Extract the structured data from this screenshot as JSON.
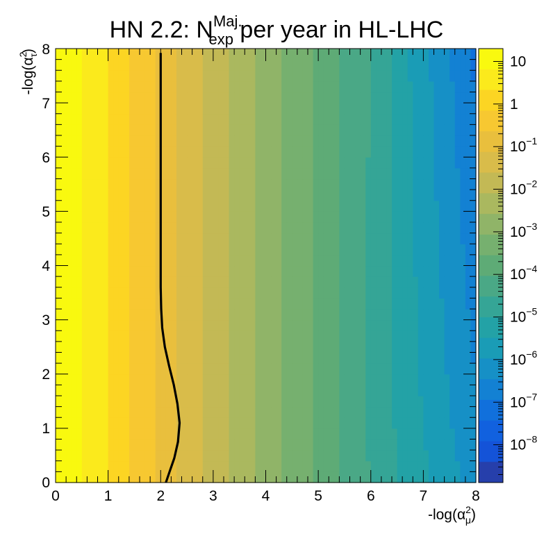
{
  "chart_data": {
    "type": "heatmap",
    "title": {
      "prefix": "HN 2.2: N",
      "sup": "Maj.",
      "sub": "exp",
      "suffix": " per year in HL-LHC"
    },
    "xlabel": {
      "prefix": "-log(α",
      "sup": "2",
      "sub": "μ",
      "suffix": ")"
    },
    "ylabel": {
      "prefix": "-log(α",
      "sup": "2",
      "sub": "τ",
      "suffix": ")"
    },
    "xlim": [
      0,
      8
    ],
    "ylim": [
      0,
      8
    ],
    "x_ticks": [
      "0",
      "1",
      "2",
      "3",
      "4",
      "5",
      "6",
      "7",
      "8"
    ],
    "y_ticks": [
      "0",
      "1",
      "2",
      "3",
      "4",
      "5",
      "6",
      "7",
      "8"
    ],
    "z_scale": "log",
    "zlim": [
      1.3e-09,
      20
    ],
    "colorbar_labels": [
      {
        "base": "10",
        "exp": "",
        "value": 10
      },
      {
        "base": "1",
        "exp": "",
        "value": 1
      },
      {
        "base": "10",
        "exp": "−1",
        "value": 0.1
      },
      {
        "base": "10",
        "exp": "−2",
        "value": 0.01
      },
      {
        "base": "10",
        "exp": "−3",
        "value": 0.001
      },
      {
        "base": "10",
        "exp": "−4",
        "value": 0.0001
      },
      {
        "base": "10",
        "exp": "−5",
        "value": 1e-05
      },
      {
        "base": "10",
        "exp": "−6",
        "value": 1e-06
      },
      {
        "base": "10",
        "exp": "−7",
        "value": 1e-07
      },
      {
        "base": "10",
        "exp": "−8",
        "value": 1e-08
      }
    ],
    "color_levels": [
      "#f9f90f",
      "#fbea1c",
      "#fcd523",
      "#f7c831",
      "#e9bf3d",
      "#d9bc4a",
      "#c3b955",
      "#aab85f",
      "#90b468",
      "#76b06f",
      "#5eab76",
      "#4aa886",
      "#35a596",
      "#23a2a6",
      "#1a9cb6",
      "#1690c6",
      "#1381d3",
      "#1170dc",
      "#1161df",
      "#1453d8",
      "#263fab"
    ],
    "contour_N1": [
      [
        2.1,
        0.0
      ],
      [
        2.17,
        0.2
      ],
      [
        2.26,
        0.45
      ],
      [
        2.33,
        0.75
      ],
      [
        2.36,
        1.1
      ],
      [
        2.32,
        1.45
      ],
      [
        2.25,
        1.8
      ],
      [
        2.16,
        2.15
      ],
      [
        2.08,
        2.5
      ],
      [
        2.03,
        2.85
      ],
      [
        2.01,
        3.2
      ],
      [
        2.0,
        3.6
      ],
      [
        2.0,
        4.5
      ],
      [
        2.0,
        5.5
      ],
      [
        2.0,
        6.5
      ],
      [
        2.0,
        7.5
      ],
      [
        2.0,
        7.92
      ]
    ],
    "series": [
      {
        "name": "N_exp^Maj. per year",
        "model": "log10(N) = 1.40 - 1.14*x + 0.025*x^2 - 0.055*max(0, x - 6 + 1.8*exp(-y/2.2)) * max(0, y - 1.6 + 0.25*x)",
        "x_bins": 80,
        "y_bins": 40
      }
    ]
  }
}
